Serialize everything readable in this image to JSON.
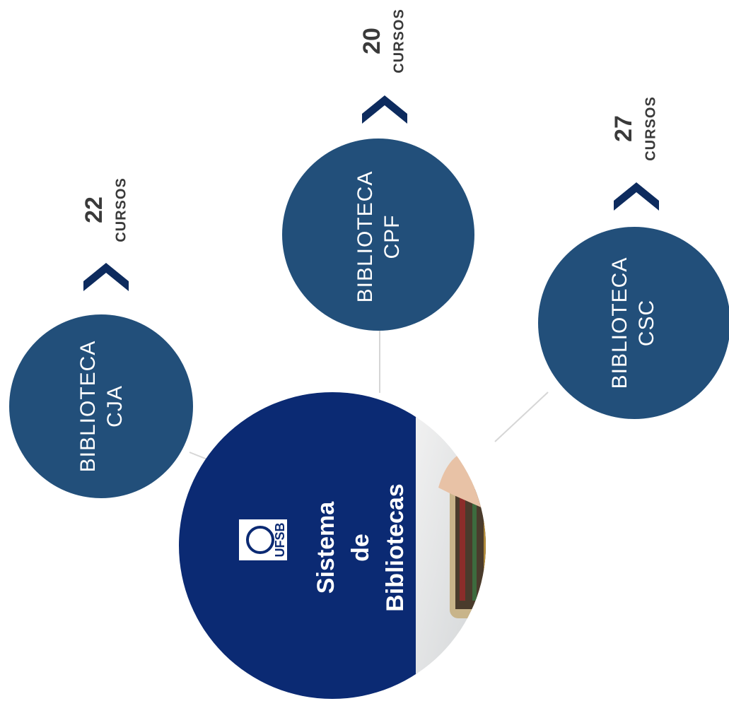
{
  "center": {
    "lines": [
      "Sistema",
      "de",
      "Bibliotecas"
    ],
    "logo": "UFSB"
  },
  "nodes": [
    {
      "label": [
        "BIBLIOTECA",
        "CJA"
      ],
      "count": "22",
      "unit": "CURSOS"
    },
    {
      "label": [
        "BIBLIOTECA",
        "CPF"
      ],
      "count": "20",
      "unit": "CURSOS"
    },
    {
      "label": [
        "BIBLIOTECA",
        "CSC"
      ],
      "count": "27",
      "unit": "CURSOS"
    }
  ]
}
